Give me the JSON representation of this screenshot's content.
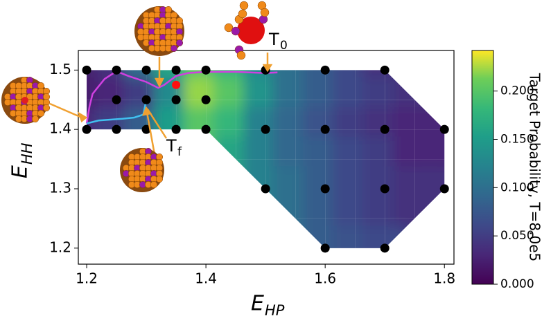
{
  "chart_data": {
    "type": "contour",
    "x_label": "E",
    "x_label_sub": "HP",
    "y_label": "E",
    "y_label_sub": "HH",
    "colorbar_label": "Target Probability, T=8.0e5",
    "xlim": [
      1.186,
      1.816
    ],
    "xticks": [
      1.2,
      1.4,
      1.6,
      1.8
    ],
    "ylim": [
      1.173,
      1.533
    ],
    "yticks": [
      1.2,
      1.3,
      1.4,
      1.5
    ],
    "clim": [
      0,
      0.242
    ],
    "cticks": [
      {
        "value": 0,
        "label": "0.000"
      },
      {
        "value": 0.05,
        "label": "0.050"
      },
      {
        "value": 0.1,
        "label": "0.100"
      },
      {
        "value": 0.15,
        "label": "0.150"
      },
      {
        "value": 0.2,
        "label": "0.200"
      }
    ],
    "colormap": "viridis",
    "field": {
      "x": [
        1.2,
        1.25,
        1.3,
        1.35,
        1.4,
        1.45,
        1.5,
        1.55,
        1.6,
        1.65,
        1.7,
        1.75,
        1.8
      ],
      "y": [
        1.5,
        1.45,
        1.4,
        1.35,
        1.3,
        1.25,
        1.2
      ],
      "values": [
        [
          0.02,
          0.04,
          0.1,
          0.16,
          0.2,
          0.18,
          0.13,
          0.1,
          0.08,
          0.06,
          0.04,
          null,
          null
        ],
        [
          0.02,
          0.03,
          0.05,
          0.13,
          0.22,
          0.2,
          0.14,
          0.1,
          0.08,
          0.06,
          0.05,
          0.04,
          null
        ],
        [
          0.03,
          0.05,
          0.08,
          0.15,
          0.2,
          0.18,
          0.12,
          0.09,
          0.07,
          0.05,
          0.04,
          0.03,
          0.03
        ],
        [
          null,
          null,
          null,
          null,
          null,
          0.16,
          0.12,
          0.09,
          0.08,
          0.06,
          0.05,
          0.03,
          0.03
        ],
        [
          null,
          null,
          null,
          null,
          null,
          null,
          0.12,
          0.1,
          0.08,
          0.06,
          0.05,
          0.04,
          0.04
        ],
        [
          null,
          null,
          null,
          null,
          null,
          null,
          null,
          0.1,
          0.08,
          0.06,
          0.05,
          0.04,
          null
        ],
        [
          null,
          null,
          null,
          null,
          null,
          null,
          null,
          null,
          0.08,
          0.07,
          0.06,
          null,
          null
        ]
      ]
    },
    "points": {
      "color": "#000000",
      "x": [
        1.2,
        1.25,
        1.3,
        1.35,
        1.4,
        1.5,
        1.6,
        1.7,
        1.25,
        1.3,
        1.35,
        1.4,
        1.2,
        1.25,
        1.3,
        1.35,
        1.4,
        1.5,
        1.6,
        1.7,
        1.8,
        1.5,
        1.6,
        1.7,
        1.8,
        1.6,
        1.7
      ],
      "y": [
        1.5,
        1.5,
        1.5,
        1.5,
        1.5,
        1.5,
        1.5,
        1.5,
        1.45,
        1.45,
        1.45,
        1.45,
        1.4,
        1.4,
        1.4,
        1.4,
        1.4,
        1.4,
        1.4,
        1.4,
        1.4,
        1.3,
        1.3,
        1.3,
        1.3,
        1.2,
        1.2
      ]
    },
    "series": [
      {
        "color": "#d040e0",
        "x": [
          1.52,
          1.5,
          1.45,
          1.4,
          1.37,
          1.35,
          1.33,
          1.32,
          1.3,
          1.27,
          1.25,
          1.23,
          1.21,
          1.205,
          1.2
        ],
        "y": [
          1.496,
          1.495,
          1.497,
          1.497,
          1.495,
          1.49,
          1.475,
          1.47,
          1.48,
          1.49,
          1.498,
          1.485,
          1.46,
          1.44,
          1.41
        ]
      },
      {
        "color": "#40c0f0",
        "x": [
          1.2,
          1.22,
          1.26,
          1.28,
          1.295,
          1.298,
          1.3
        ],
        "y": [
          1.41,
          1.415,
          1.418,
          1.42,
          1.425,
          1.44,
          1.45
        ]
      }
    ],
    "marker": {
      "color": "#ff1010",
      "x": 1.35,
      "y": 1.475
    },
    "annotations": [
      {
        "text": "T",
        "sub": "0"
      },
      {
        "text": "T",
        "sub": "f"
      }
    ]
  }
}
